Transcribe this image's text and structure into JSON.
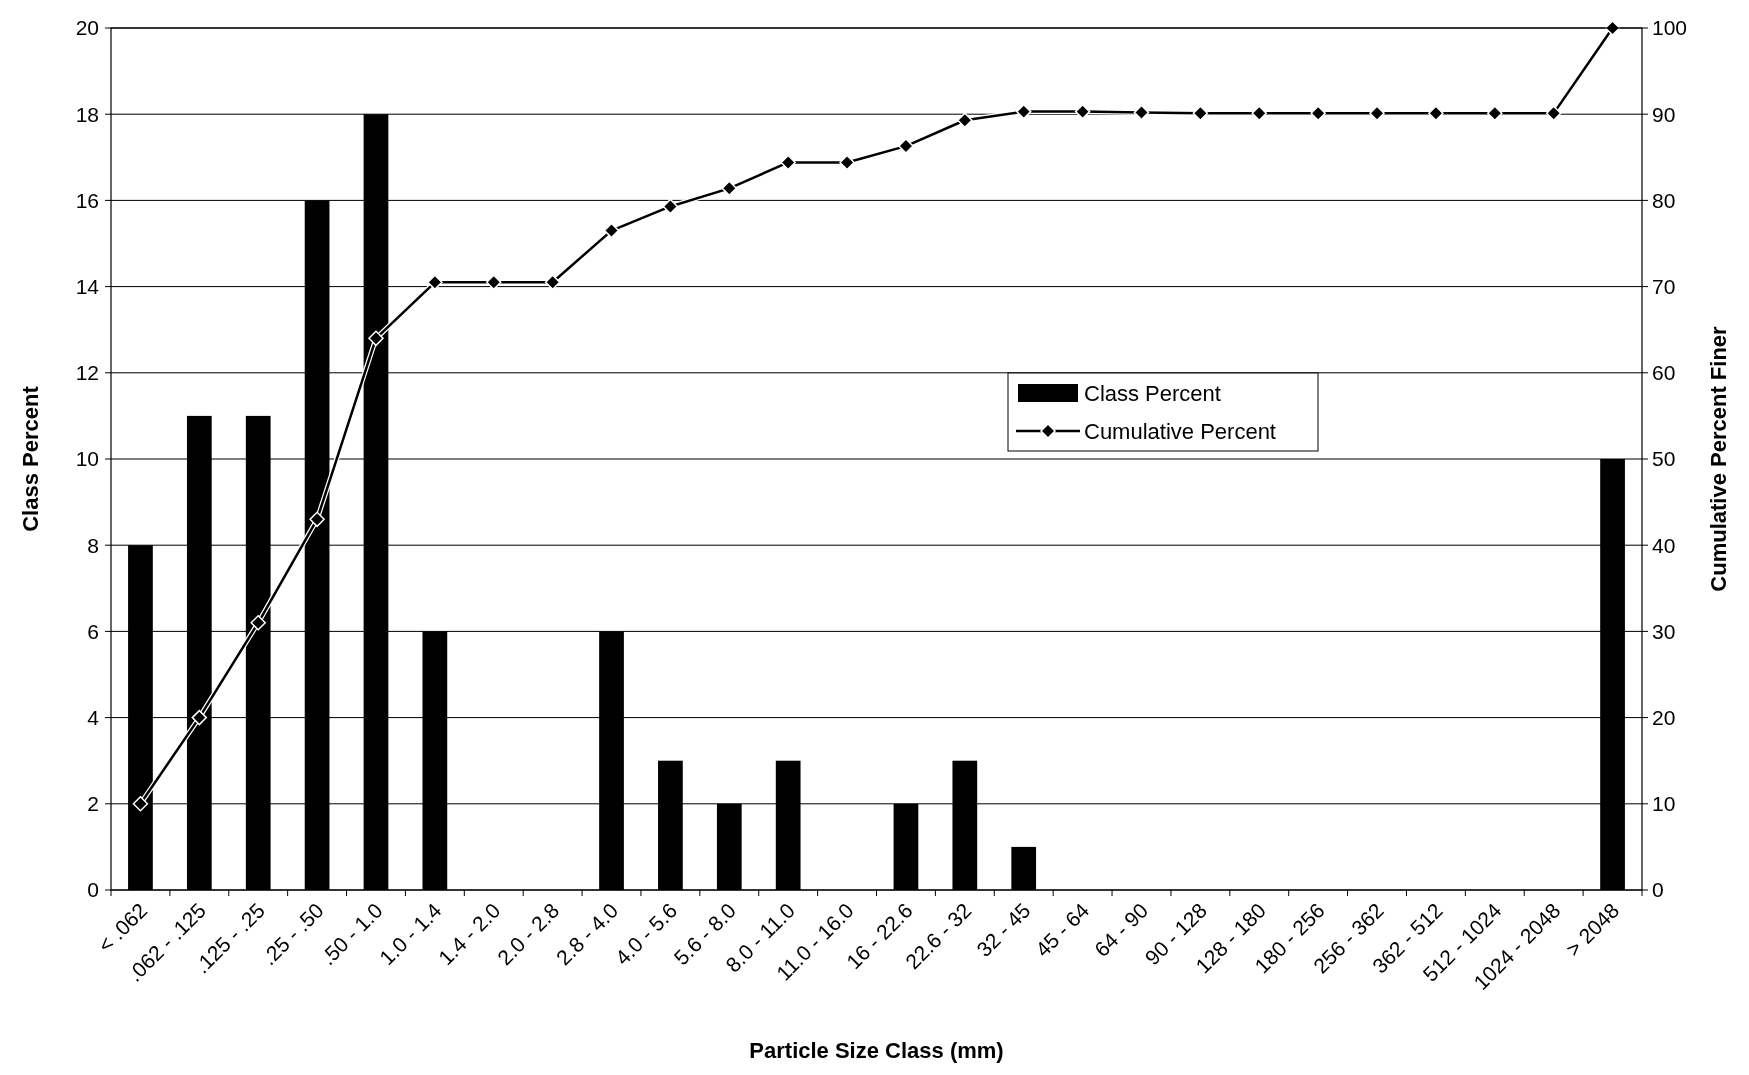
{
  "chart_data": {
    "type": "bar",
    "xlabel": "Particle Size Class (mm)",
    "ylabel": "Class Percent",
    "y2label": "Cumulative Percent Finer",
    "categories": [
      "< .062",
      ".062 - .125",
      ".125 - .25",
      ".25 - .50",
      ".50 - 1.0",
      "1.0 - 1.4",
      "1.4 - 2.0",
      "2.0 - 2.8",
      "2.8 - 4.0",
      "4.0 - 5.6",
      "5.6 - 8.0",
      "8.0 - 11.0",
      "11.0 - 16.0",
      "16 - 22.6",
      "22.6 - 32",
      "32 - 45",
      "45 - 64",
      "64 - 90",
      "90 - 128",
      "128 - 180",
      "180 - 256",
      "256 - 362",
      "362 - 512",
      "512 - 1024",
      "1024 - 2048",
      "> 2048"
    ],
    "series": [
      {
        "name": "Class Percent",
        "color": "#000000",
        "values": [
          8,
          11,
          11,
          16,
          18,
          6,
          0,
          0,
          6,
          3,
          2,
          3,
          0,
          2,
          3,
          1,
          0,
          0,
          0,
          0,
          0,
          0,
          0,
          0,
          0,
          10
        ]
      },
      {
        "name": "Cumulative Percent",
        "type": "line",
        "axis": "y2",
        "color": "#000000",
        "marker": "diamond",
        "values": [
          10,
          20,
          31,
          43,
          64,
          70.5,
          70.5,
          70.5,
          76.5,
          79.3,
          81.4,
          84.4,
          84.4,
          86.3,
          89.3,
          90.3,
          90.3,
          90.2,
          90.1,
          90.1,
          90.1,
          90.1,
          90.1,
          90.1,
          90.1,
          100
        ]
      }
    ],
    "ylim": [
      0,
      20
    ],
    "yticks": [
      0,
      2,
      4,
      6,
      8,
      10,
      12,
      14,
      16,
      18,
      20
    ],
    "y2lim": [
      0,
      100
    ],
    "y2ticks": [
      0,
      10,
      20,
      30,
      40,
      50,
      60,
      70,
      80,
      90,
      100
    ],
    "grid": "y",
    "legend": "right"
  }
}
